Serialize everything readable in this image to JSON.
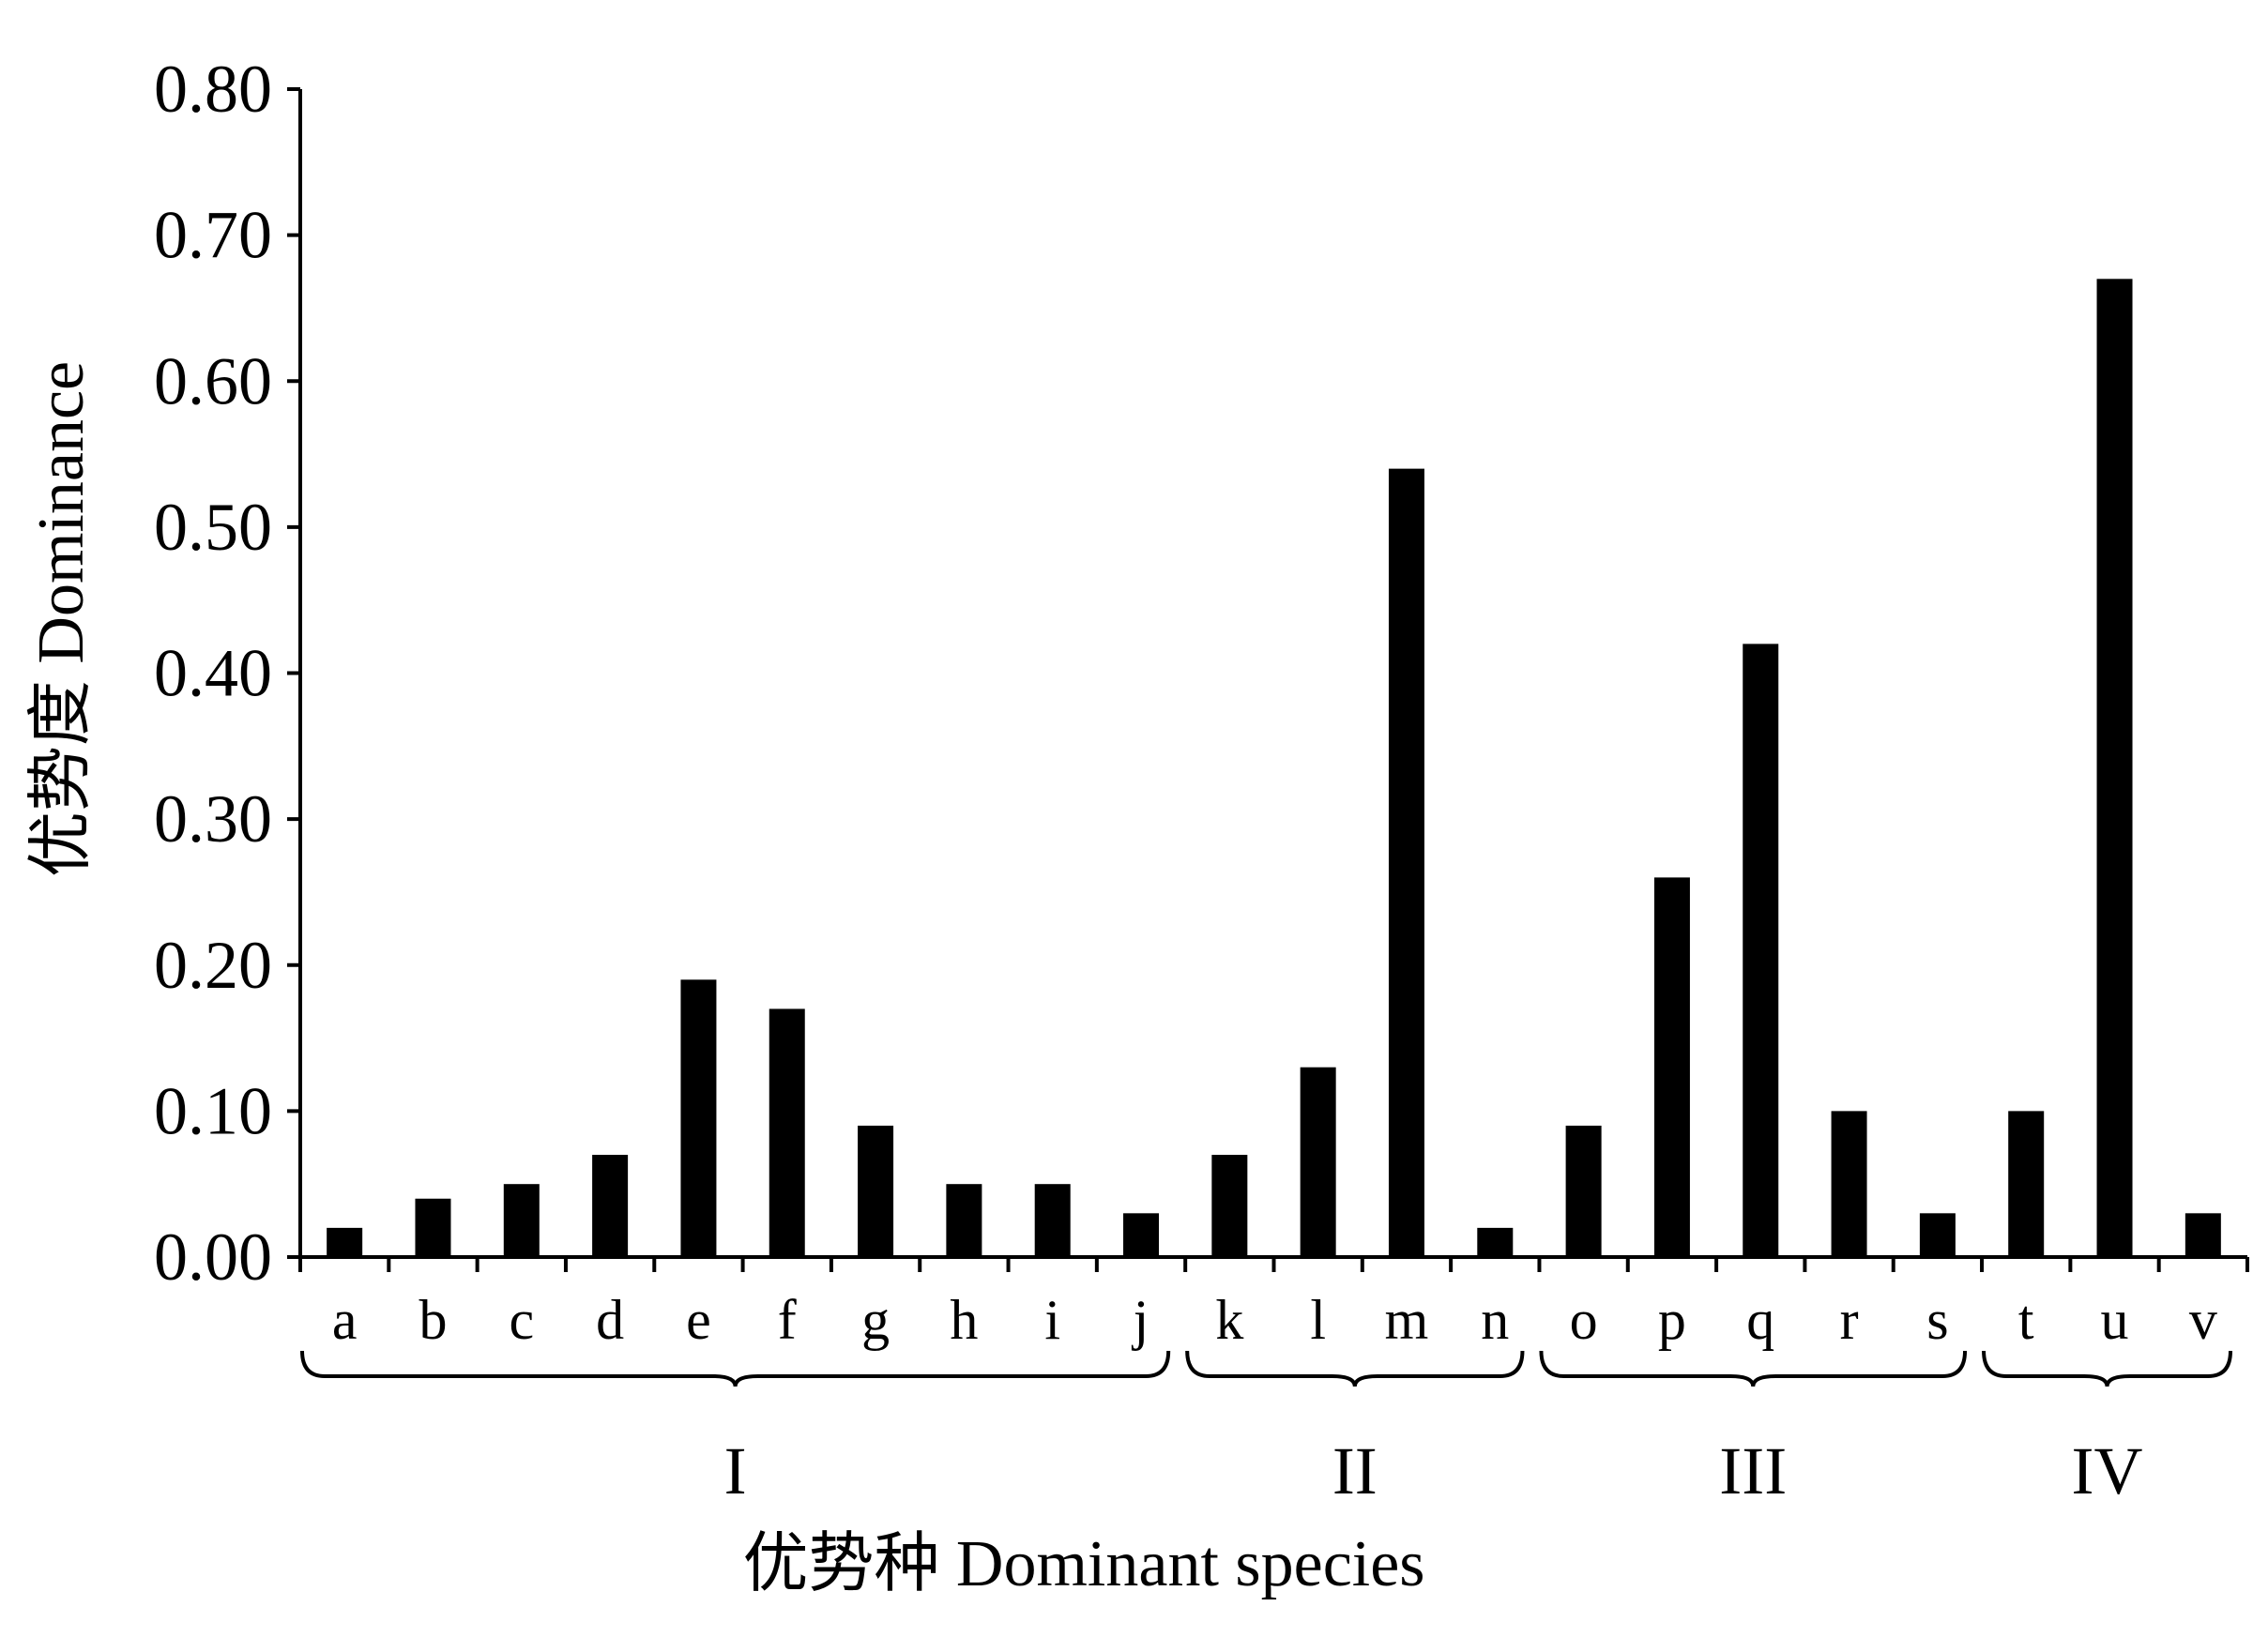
{
  "chart_data": {
    "type": "bar",
    "title": "",
    "xlabel": "优势种 Dominant species",
    "ylabel": "优势度 Dominance",
    "ylim": [
      0,
      0.8
    ],
    "yticks": [
      "0.00",
      "0.10",
      "0.20",
      "0.30",
      "0.40",
      "0.50",
      "0.60",
      "0.70",
      "0.80"
    ],
    "categories": [
      "a",
      "b",
      "c",
      "d",
      "e",
      "f",
      "g",
      "h",
      "i",
      "j",
      "k",
      "l",
      "m",
      "n",
      "o",
      "p",
      "q",
      "r",
      "s",
      "t",
      "u",
      "v"
    ],
    "values": [
      0.02,
      0.04,
      0.05,
      0.07,
      0.19,
      0.17,
      0.09,
      0.05,
      0.05,
      0.03,
      0.07,
      0.13,
      0.54,
      0.02,
      0.09,
      0.26,
      0.42,
      0.1,
      0.03,
      0.1,
      0.67,
      0.03
    ],
    "groups": [
      {
        "label": "I",
        "categories": [
          "a",
          "b",
          "c",
          "d",
          "e",
          "f",
          "g",
          "h",
          "i",
          "j"
        ]
      },
      {
        "label": "II",
        "categories": [
          "k",
          "l",
          "m",
          "n"
        ]
      },
      {
        "label": "III",
        "categories": [
          "o",
          "p",
          "q",
          "r",
          "s"
        ]
      },
      {
        "label": "IV",
        "categories": [
          "t",
          "u",
          "v"
        ]
      }
    ],
    "bar_color": "#000000",
    "grid": false,
    "legend": "none"
  }
}
